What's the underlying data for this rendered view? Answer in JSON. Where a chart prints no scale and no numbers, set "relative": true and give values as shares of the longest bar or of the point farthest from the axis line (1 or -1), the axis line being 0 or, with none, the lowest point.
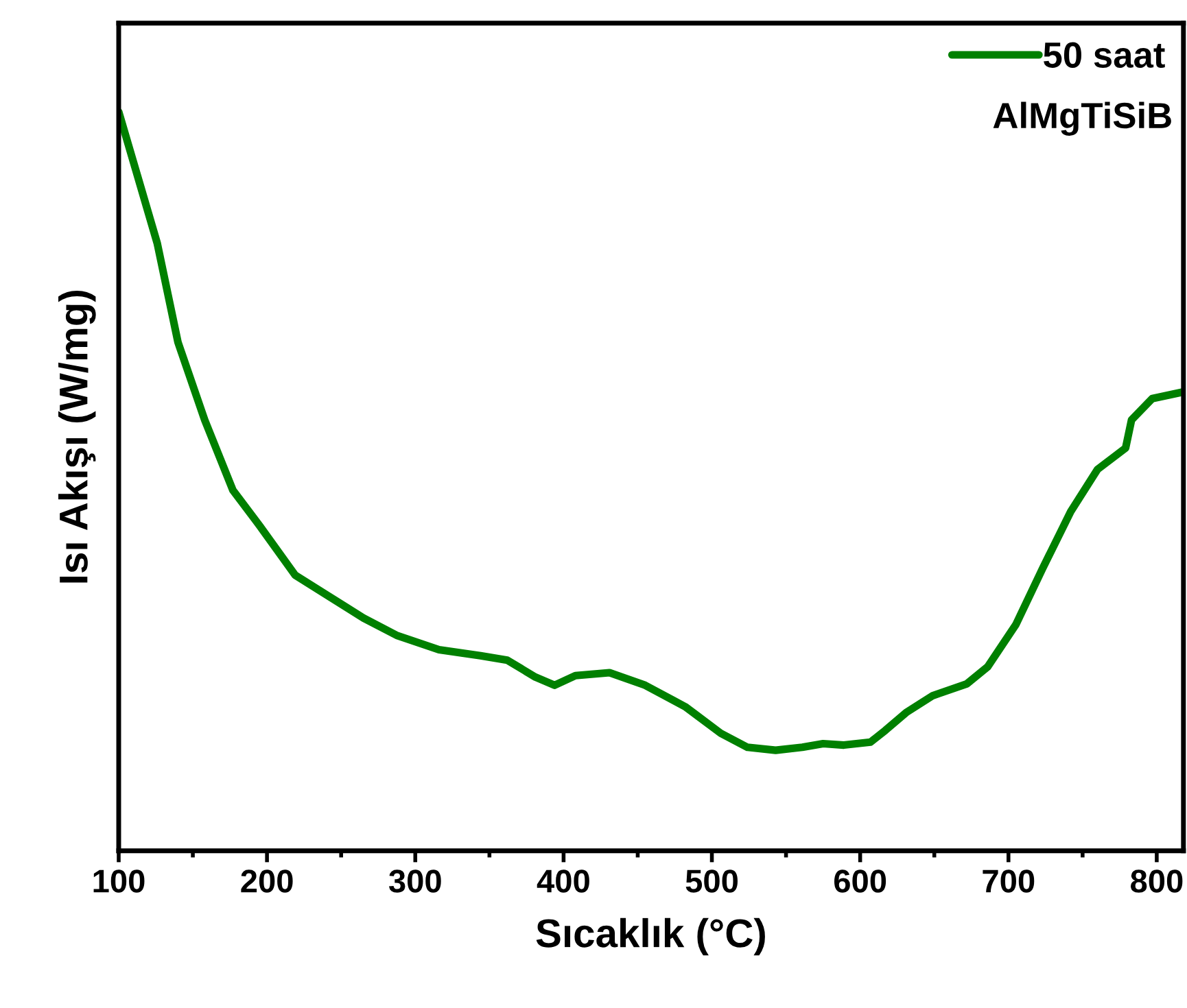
{
  "chart_data": {
    "type": "line",
    "xlabel": "Sıcaklık (°C)",
    "ylabel": "Isı Akışı (W/mg)",
    "relative": true,
    "xlim": [
      100,
      818
    ],
    "xticks": [
      100,
      200,
      300,
      400,
      500,
      600,
      700,
      800
    ],
    "legend": "top right",
    "grid": false,
    "annotations": [
      "AlMgTiSiB"
    ],
    "series": [
      {
        "name": "50 saat",
        "color": "#008000",
        "x": [
          100,
          112,
          126,
          140,
          158,
          177,
          195,
          219,
          242,
          265,
          288,
          316,
          344,
          362,
          381,
          394,
          408,
          431,
          455,
          482,
          506,
          524,
          543,
          561,
          575,
          589,
          607,
          617,
          631,
          649,
          672,
          686,
          705,
          723,
          742,
          760,
          779,
          783,
          797,
          818
        ],
        "values": [
          1.0,
          0.918,
          0.822,
          0.688,
          0.583,
          0.488,
          0.44,
          0.373,
          0.344,
          0.315,
          0.291,
          0.272,
          0.264,
          0.258,
          0.235,
          0.224,
          0.237,
          0.241,
          0.224,
          0.195,
          0.159,
          0.14,
          0.136,
          0.14,
          0.145,
          0.143,
          0.147,
          0.163,
          0.187,
          0.21,
          0.226,
          0.249,
          0.306,
          0.382,
          0.459,
          0.516,
          0.545,
          0.583,
          0.612,
          0.621
        ]
      }
    ]
  }
}
